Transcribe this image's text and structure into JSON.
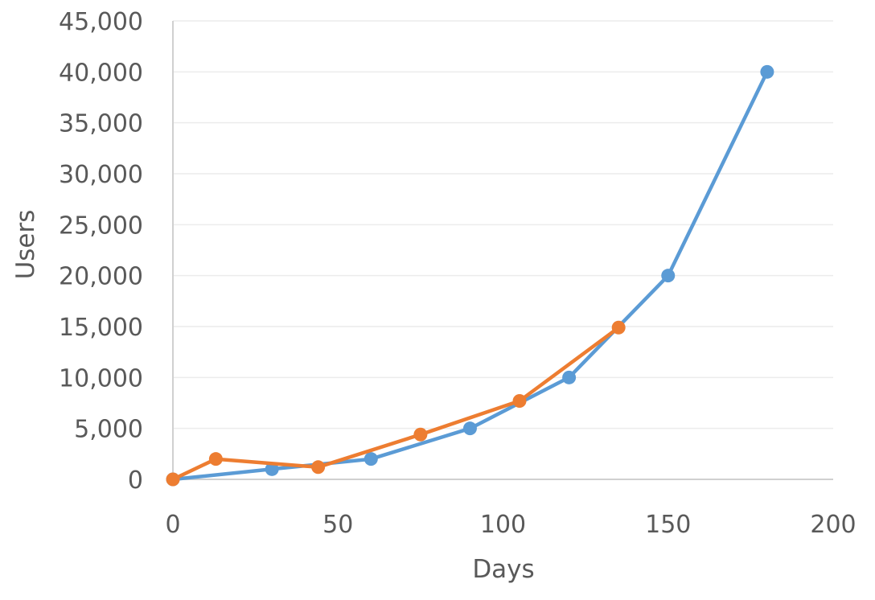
{
  "chart_data": {
    "type": "scatter",
    "xlabel": "Days",
    "ylabel": "Users",
    "xlim": [
      0,
      200
    ],
    "ylim": [
      0,
      45000
    ],
    "x_ticks": [
      "0",
      "50",
      "100",
      "150",
      "200"
    ],
    "y_ticks": [
      "0",
      "5,000",
      "10,000",
      "15,000",
      "20,000",
      "25,000",
      "30,000",
      "35,000",
      "40,000",
      "45,000"
    ],
    "grid": true,
    "legend": "none",
    "series": [
      {
        "color": "#5b9bd5",
        "points": [
          {
            "x": 0,
            "y": 0
          },
          {
            "x": 30,
            "y": 1000
          },
          {
            "x": 60,
            "y": 2000
          },
          {
            "x": 90,
            "y": 5000
          },
          {
            "x": 120,
            "y": 10000
          },
          {
            "x": 150,
            "y": 20000
          },
          {
            "x": 180,
            "y": 40000
          }
        ]
      },
      {
        "color": "#ed7d31",
        "points": [
          {
            "x": 0,
            "y": 0
          },
          {
            "x": 13,
            "y": 2000
          },
          {
            "x": 44,
            "y": 1200
          },
          {
            "x": 75,
            "y": 4400
          },
          {
            "x": 105,
            "y": 7700
          },
          {
            "x": 135,
            "y": 14900
          }
        ]
      }
    ]
  }
}
